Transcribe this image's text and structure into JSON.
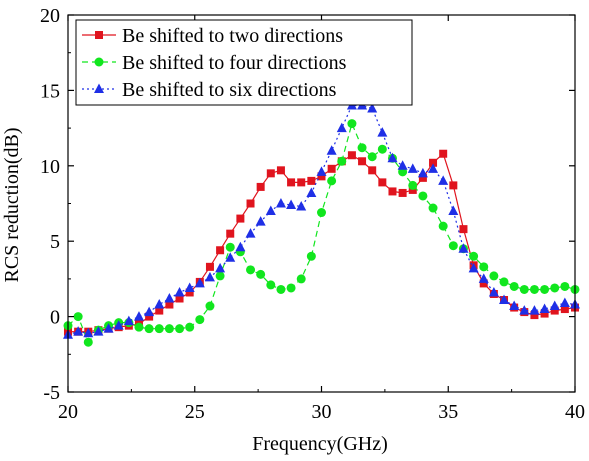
{
  "chart_data": {
    "type": "line",
    "title": "",
    "xlabel": "Frequency(GHz)",
    "ylabel": "RCS reduction(dB)",
    "xlim": [
      20,
      40
    ],
    "ylim": [
      -5,
      20
    ],
    "xticks": [
      20,
      25,
      30,
      35,
      40
    ],
    "yticks": [
      -5,
      0,
      5,
      10,
      15,
      20
    ],
    "grid": false,
    "legend_position": "top-left",
    "series": [
      {
        "name": "Be shifted to two directions",
        "color": "#e0141e",
        "marker": "square",
        "line_style": "solid",
        "x": [
          20.0,
          20.4,
          20.8,
          21.2,
          21.6,
          22.0,
          22.4,
          22.8,
          23.2,
          23.6,
          24.0,
          24.4,
          24.8,
          25.2,
          25.6,
          26.0,
          26.4,
          26.8,
          27.2,
          27.6,
          28.0,
          28.4,
          28.8,
          29.2,
          29.6,
          30.0,
          30.4,
          30.8,
          31.2,
          31.6,
          32.0,
          32.4,
          32.8,
          33.2,
          33.6,
          34.0,
          34.4,
          34.8,
          35.2,
          35.6,
          36.0,
          36.4,
          36.8,
          37.2,
          37.6,
          38.0,
          38.4,
          38.8,
          39.2,
          39.6,
          40.0
        ],
        "y": [
          -1.0,
          -1.0,
          -1.0,
          -0.9,
          -0.8,
          -0.7,
          -0.6,
          -0.5,
          0.0,
          0.4,
          0.8,
          1.2,
          1.6,
          2.3,
          3.3,
          4.4,
          5.5,
          6.5,
          7.5,
          8.6,
          9.5,
          9.7,
          8.9,
          8.9,
          9.0,
          9.3,
          9.8,
          10.3,
          10.7,
          10.3,
          9.7,
          8.9,
          8.3,
          8.2,
          8.4,
          9.2,
          10.2,
          10.8,
          8.7,
          5.8,
          3.4,
          2.2,
          1.5,
          1.1,
          0.6,
          0.3,
          0.1,
          0.2,
          0.4,
          0.5,
          0.6
        ]
      },
      {
        "name": "Be shifted to four directions",
        "color": "#11e61e",
        "marker": "circle",
        "line_style": "dashed",
        "x": [
          20.0,
          20.4,
          20.8,
          21.2,
          21.6,
          22.0,
          22.4,
          22.8,
          23.2,
          23.6,
          24.0,
          24.4,
          24.8,
          25.2,
          25.6,
          26.0,
          26.4,
          26.8,
          27.2,
          27.6,
          28.0,
          28.4,
          28.8,
          29.2,
          29.6,
          30.0,
          30.4,
          30.8,
          31.2,
          31.6,
          32.0,
          32.4,
          32.8,
          33.2,
          33.6,
          34.0,
          34.4,
          34.8,
          35.2,
          35.6,
          36.0,
          36.4,
          36.8,
          37.2,
          37.6,
          38.0,
          38.4,
          38.8,
          39.2,
          39.6,
          40.0
        ],
        "y": [
          -0.6,
          0.0,
          -1.7,
          -0.9,
          -0.6,
          -0.4,
          -0.4,
          -0.7,
          -0.8,
          -0.8,
          -0.8,
          -0.8,
          -0.7,
          -0.2,
          0.7,
          2.7,
          4.6,
          4.3,
          3.1,
          2.8,
          2.1,
          1.8,
          1.9,
          2.5,
          4.0,
          6.9,
          9.0,
          10.3,
          12.8,
          11.2,
          10.6,
          11.1,
          10.5,
          9.6,
          8.7,
          8.0,
          7.2,
          6.0,
          4.7,
          4.5,
          4.0,
          3.3,
          2.7,
          2.3,
          2.0,
          1.8,
          1.8,
          1.8,
          1.9,
          2.0,
          1.8
        ]
      },
      {
        "name": "Be shifted to six directions",
        "color": "#1f2fe6",
        "marker": "triangle",
        "line_style": "dotted",
        "x": [
          20.0,
          20.4,
          20.8,
          21.2,
          21.6,
          22.0,
          22.4,
          22.8,
          23.2,
          23.6,
          24.0,
          24.4,
          24.8,
          25.2,
          25.6,
          26.0,
          26.4,
          26.8,
          27.2,
          27.6,
          28.0,
          28.4,
          28.8,
          29.2,
          29.6,
          30.0,
          30.4,
          30.8,
          31.2,
          31.6,
          32.0,
          32.4,
          32.8,
          33.2,
          33.6,
          34.0,
          34.4,
          34.8,
          35.2,
          35.6,
          36.0,
          36.4,
          36.8,
          37.2,
          37.6,
          38.0,
          38.4,
          38.8,
          39.2,
          39.6,
          40.0
        ],
        "y": [
          -1.2,
          -1.0,
          -1.1,
          -1.0,
          -0.8,
          -0.6,
          -0.3,
          0.0,
          0.3,
          0.8,
          1.2,
          1.6,
          1.9,
          2.2,
          2.6,
          3.2,
          3.9,
          4.6,
          5.5,
          6.3,
          7.0,
          7.5,
          7.4,
          7.3,
          8.2,
          9.6,
          11.0,
          12.5,
          14.0,
          14.0,
          13.8,
          12.2,
          10.5,
          10.0,
          9.8,
          9.5,
          9.8,
          9.0,
          7.0,
          4.5,
          3.2,
          2.5,
          1.6,
          1.1,
          0.7,
          0.4,
          0.4,
          0.5,
          0.7,
          0.9,
          0.8
        ]
      }
    ]
  }
}
